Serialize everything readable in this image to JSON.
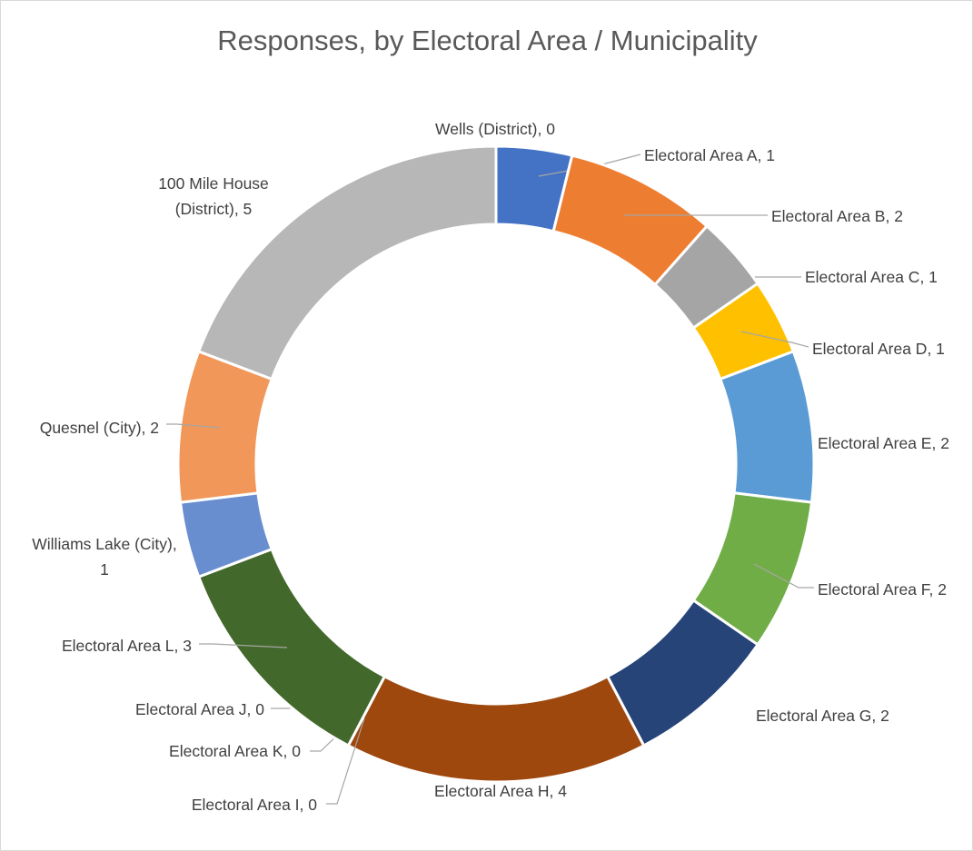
{
  "chart_data": {
    "type": "pie",
    "variant": "doughnut",
    "title": "Responses, by Electoral Area / Municipality",
    "legend": "none",
    "slices": [
      {
        "name": "Wells (District)",
        "value": 0,
        "label": "Wells (District), 0",
        "color": "#4472c4"
      },
      {
        "name": "Electoral Area A",
        "value": 1,
        "label": "Electoral Area A, 1",
        "color": "#4472c4"
      },
      {
        "name": "Electoral Area B",
        "value": 2,
        "label": "Electoral Area B, 2",
        "color": "#ed7d31"
      },
      {
        "name": "Electoral Area C",
        "value": 1,
        "label": "Electoral Area C, 1",
        "color": "#a5a5a5"
      },
      {
        "name": "Electoral Area D",
        "value": 1,
        "label": "Electoral Area D, 1",
        "color": "#ffc000"
      },
      {
        "name": "Electoral Area E",
        "value": 2,
        "label": "Electoral Area E, 2",
        "color": "#5b9bd5"
      },
      {
        "name": "Electoral Area F",
        "value": 2,
        "label": "Electoral Area F, 2",
        "color": "#70ad47"
      },
      {
        "name": "Electoral Area G",
        "value": 2,
        "label": "Electoral Area G, 2",
        "color": "#264478"
      },
      {
        "name": "Electoral Area H",
        "value": 4,
        "label": "Electoral Area H, 4",
        "color": "#9e480e"
      },
      {
        "name": "Electoral Area I",
        "value": 0,
        "label": "Electoral Area I, 0",
        "color": "#636363"
      },
      {
        "name": "Electoral Area K",
        "value": 0,
        "label": "Electoral Area K, 0",
        "color": "#997300"
      },
      {
        "name": "Electoral Area J",
        "value": 0,
        "label": "Electoral Area J, 0",
        "color": "#255e91"
      },
      {
        "name": "Electoral Area L",
        "value": 3,
        "label": "Electoral Area L, 3",
        "color": "#43682b"
      },
      {
        "name": "Williams Lake (City)",
        "value": 1,
        "label": "Williams Lake (City), 1",
        "color": "#698ed0"
      },
      {
        "name": "Quesnel (City)",
        "value": 2,
        "label": "Quesnel (City), 2",
        "color": "#f1975a"
      },
      {
        "name": "100 Mile House (District)",
        "value": 5,
        "label": "100 Mile House (District), 5",
        "color": "#b7b7b7"
      }
    ]
  }
}
